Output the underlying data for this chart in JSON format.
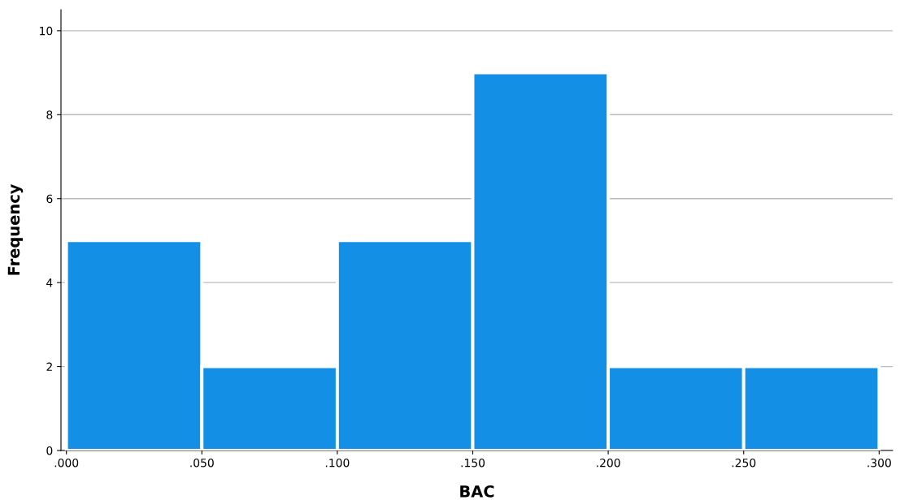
{
  "chart_data": {
    "type": "histogram",
    "xlabel": "BAC",
    "ylabel": "Frequency",
    "bins": [
      0,
      0.05,
      0.1,
      0.15,
      0.2,
      0.25,
      0.3
    ],
    "values": [
      5,
      2,
      5,
      9,
      2,
      2
    ],
    "color": "#1390e6",
    "xlim": [
      -0.002,
      0.305
    ],
    "xticks": [
      {
        "value": 0,
        "label": ".000"
      },
      {
        "value": 0.05,
        "label": ".050"
      },
      {
        "value": 0.1,
        "label": ".100"
      },
      {
        "value": 0.15,
        "label": ".150"
      },
      {
        "value": 0.2,
        "label": ".200"
      },
      {
        "value": 0.25,
        "label": ".250"
      },
      {
        "value": 0.3,
        "label": ".300"
      }
    ],
    "ylim": [
      0,
      10.5
    ],
    "yticks": [
      0,
      2,
      4,
      6,
      8,
      10
    ],
    "grid": "y"
  }
}
